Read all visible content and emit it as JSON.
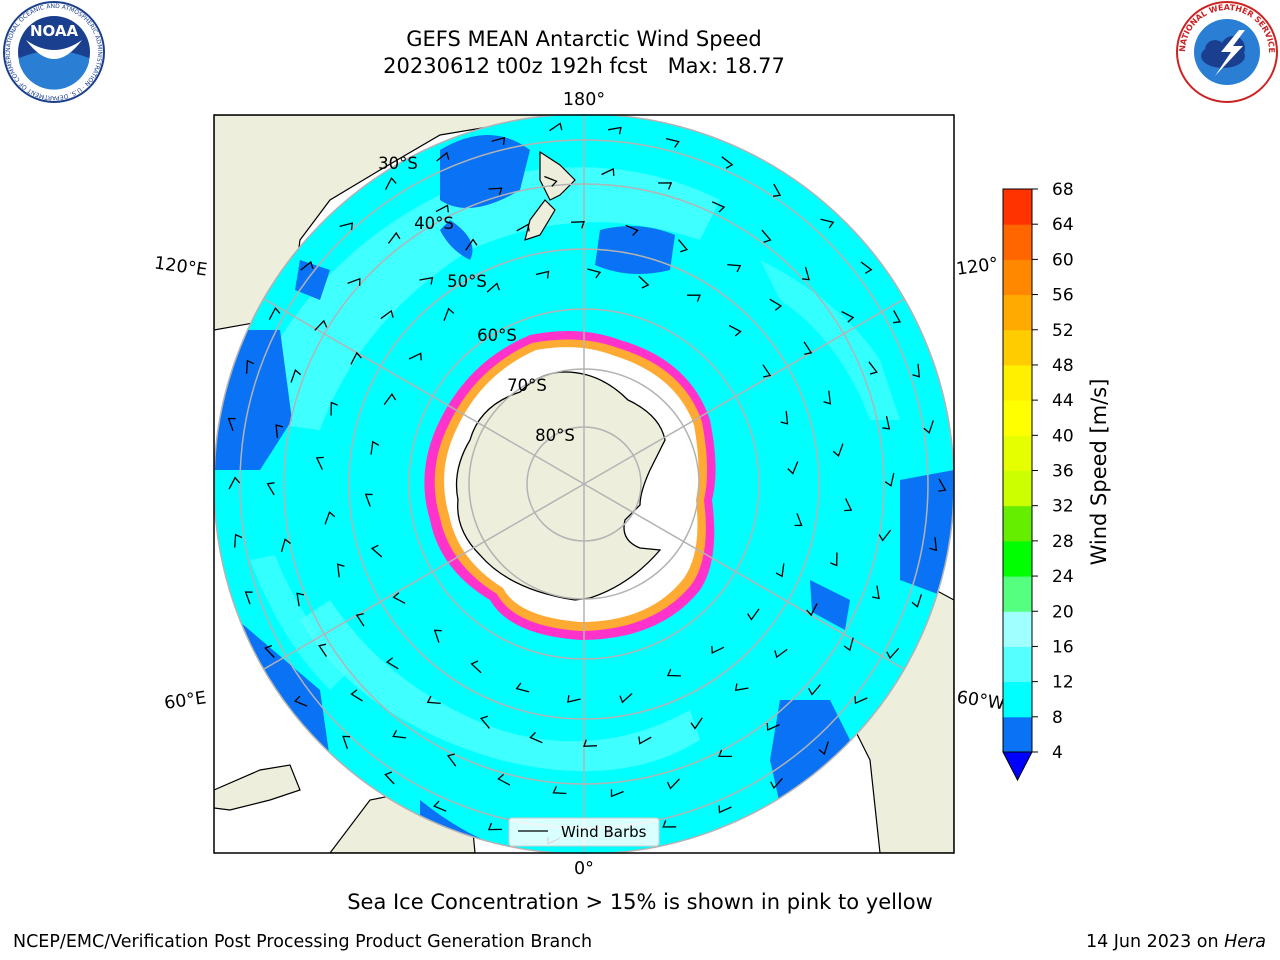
{
  "header": {
    "title": "GEFS MEAN Antarctic Wind Speed",
    "subtitle": "20230612 t00z 192h fcst   Max: 18.77"
  },
  "logos": {
    "left": {
      "name": "NOAA",
      "text": "NOAA",
      "ring_text": "NATIONAL OCEANIC AND ATMOSPHERIC ADMINISTRATION · U.S. DEPARTMENT OF COMMERCE"
    },
    "right": {
      "name": "National Weather Service",
      "ring_text": "NATIONAL WEATHER SERVICE"
    }
  },
  "map": {
    "projection": "south polar stereographic",
    "lon_labels": [
      "180°",
      "120°E",
      "120°",
      "60°E",
      "60°W",
      "0°"
    ],
    "lat_labels": [
      "30°S",
      "40°S",
      "50°S",
      "60°S",
      "70°S",
      "80°S"
    ],
    "legend_label": "Wind Barbs",
    "colors": {
      "land": "#eeeedc",
      "ice_free_antarctic_sea": "#ffffff",
      "sea_ice_edge": [
        "#ff33cc",
        "#ffaa33"
      ],
      "coastline": "#000000",
      "gridline": "#b3b3b3"
    }
  },
  "chart_data": {
    "type": "heatmap",
    "variable": "Wind Speed",
    "units": "m/s",
    "max_value": 18.77,
    "colorbar": {
      "label": "Wind Speed [m/s]",
      "tick_labels": [
        "68",
        "64",
        "60",
        "56",
        "52",
        "48",
        "44",
        "40",
        "36",
        "32",
        "28",
        "24",
        "20",
        "16",
        "12",
        "8",
        "4"
      ],
      "levels": [
        4,
        8,
        12,
        16,
        20,
        24,
        28,
        32,
        36,
        40,
        44,
        48,
        52,
        56,
        60,
        64,
        68
      ],
      "colors": [
        "#0a72f5",
        "#00ffff",
        "#55ffff",
        "#a0ffff",
        "#55ff7f",
        "#00ff00",
        "#66ee00",
        "#ccff00",
        "#e6ff00",
        "#ffff00",
        "#fff000",
        "#ffcc00",
        "#ffaa00",
        "#ff8800",
        "#ff6600",
        "#ff3300",
        "#ff0000"
      ],
      "under_color": "#0000ff",
      "extend": "min"
    },
    "annotation": "Sea Ice Concentration > 15% is shown in pink to yellow"
  },
  "footer": {
    "credit": "NCEP/EMC/Verification Post Processing Product Generation Branch",
    "date": "14 Jun 2023 on ",
    "machine": "Hera"
  }
}
